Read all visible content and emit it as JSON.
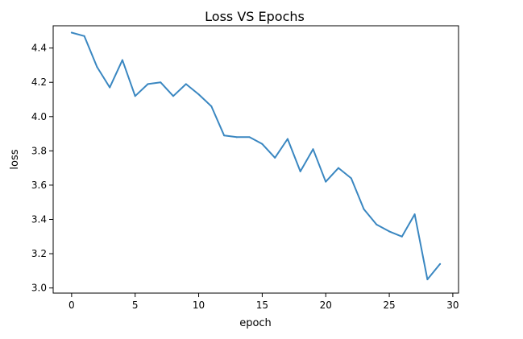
{
  "chart_data": {
    "type": "line",
    "title": "Loss VS Epochs",
    "xlabel": "epoch",
    "ylabel": "loss",
    "xlim": [
      -1.45,
      30.45
    ],
    "ylim": [
      2.97,
      4.53
    ],
    "xticks": [
      0,
      5,
      10,
      15,
      20,
      25,
      30
    ],
    "yticks": [
      3.0,
      3.2,
      3.4,
      3.6,
      3.8,
      4.0,
      4.2,
      4.4
    ],
    "xtick_labels": [
      "0",
      "5",
      "10",
      "15",
      "20",
      "25",
      "30"
    ],
    "ytick_labels": [
      "3.0",
      "3.2",
      "3.4",
      "3.6",
      "3.8",
      "4.0",
      "4.2",
      "4.4"
    ],
    "grid": false,
    "series": [
      {
        "color": "#3a87c1",
        "x": [
          0,
          1,
          2,
          3,
          4,
          5,
          6,
          7,
          8,
          9,
          10,
          11,
          12,
          13,
          14,
          15,
          16,
          17,
          18,
          19,
          20,
          21,
          22,
          23,
          24,
          25,
          26,
          27,
          28,
          29
        ],
        "y": [
          4.49,
          4.47,
          4.29,
          4.17,
          4.33,
          4.12,
          4.19,
          4.2,
          4.12,
          4.19,
          4.13,
          4.06,
          3.89,
          3.88,
          3.88,
          3.84,
          3.76,
          3.87,
          3.68,
          3.81,
          3.62,
          3.7,
          3.64,
          3.46,
          3.37,
          3.33,
          3.3,
          3.43,
          3.05,
          3.14
        ]
      }
    ]
  }
}
